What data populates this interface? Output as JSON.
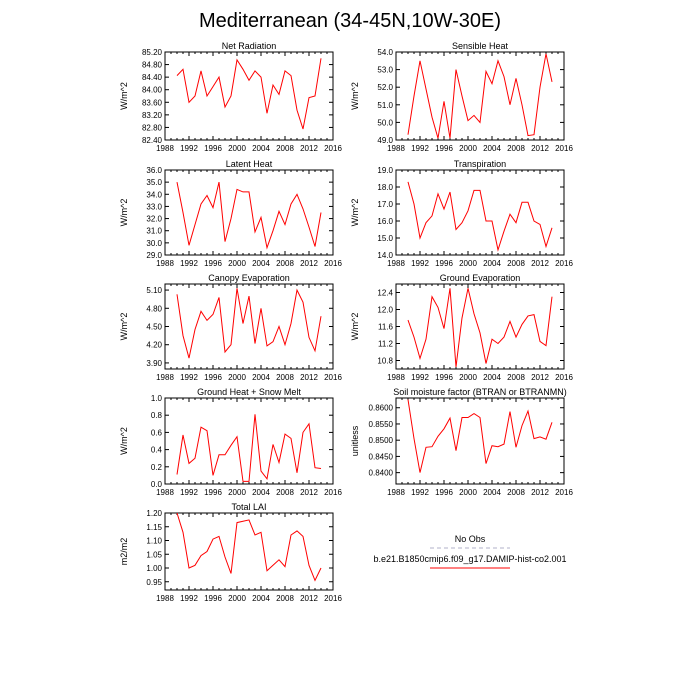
{
  "figure_title": "Mediterranean (34-45N,10W-30E)",
  "x_ticks": [
    "1988",
    "1992",
    "1996",
    "2000",
    "2004",
    "2008",
    "2012",
    "2016"
  ],
  "legend": {
    "obs_label": "No Obs",
    "model_label": "b.e21.B1850cmip6.f09_g17.DAMIP-hist-co2.001",
    "obs_color": "#b0b0c8",
    "model_color": "#ff0000"
  },
  "chart_data": [
    {
      "type": "line",
      "title": "Net Radiation",
      "ylabel": "W/m^2",
      "xlim": [
        1988,
        2016
      ],
      "ylim": [
        82.4,
        85.2
      ],
      "yticks": [
        "82.40",
        "82.80",
        "83.20",
        "83.60",
        "84.00",
        "84.40",
        "84.80",
        "85.20"
      ],
      "x": [
        1990,
        1991,
        1992,
        1993,
        1994,
        1995,
        1996,
        1997,
        1998,
        1999,
        2000,
        2001,
        2002,
        2003,
        2004,
        2005,
        2006,
        2007,
        2008,
        2009,
        2010,
        2011,
        2012,
        2013,
        2014
      ],
      "series": [
        {
          "values": [
            84.45,
            84.65,
            83.6,
            83.8,
            84.6,
            83.8,
            84.1,
            84.4,
            83.45,
            83.8,
            84.95,
            84.65,
            84.3,
            84.6,
            84.4,
            83.25,
            84.15,
            83.85,
            84.6,
            84.45,
            83.35,
            82.75,
            83.75,
            83.8,
            85.0
          ]
        }
      ]
    },
    {
      "type": "line",
      "title": "Sensible Heat",
      "ylabel": "W/m^2",
      "xlim": [
        1988,
        2016
      ],
      "ylim": [
        49.0,
        54.0
      ],
      "yticks": [
        "49.0",
        "50.0",
        "51.0",
        "52.0",
        "53.0",
        "54.0"
      ],
      "x": [
        1990,
        1991,
        1992,
        1993,
        1994,
        1995,
        1996,
        1997,
        1998,
        1999,
        2000,
        2001,
        2002,
        2003,
        2004,
        2005,
        2006,
        2007,
        2008,
        2009,
        2010,
        2011,
        2012,
        2013,
        2014
      ],
      "series": [
        {
          "values": [
            49.3,
            51.5,
            53.5,
            51.9,
            50.3,
            49.1,
            51.2,
            49.1,
            53.0,
            51.5,
            50.1,
            50.4,
            50.0,
            52.9,
            52.2,
            53.5,
            52.6,
            51.0,
            52.5,
            51.0,
            49.25,
            49.3,
            52.0,
            53.9,
            52.3
          ]
        }
      ]
    },
    {
      "type": "line",
      "title": "Latent Heat",
      "ylabel": "W/m^2",
      "xlim": [
        1988,
        2016
      ],
      "ylim": [
        29.0,
        36.0
      ],
      "yticks": [
        "29.0",
        "30.0",
        "31.0",
        "32.0",
        "33.0",
        "34.0",
        "35.0",
        "36.0"
      ],
      "x": [
        1990,
        1991,
        1992,
        1993,
        1994,
        1995,
        1996,
        1997,
        1998,
        1999,
        2000,
        2001,
        2002,
        2003,
        2004,
        2005,
        2006,
        2007,
        2008,
        2009,
        2010,
        2011,
        2012,
        2013,
        2014
      ],
      "series": [
        {
          "values": [
            35.0,
            32.5,
            29.8,
            31.5,
            33.2,
            33.9,
            32.9,
            35.0,
            30.1,
            32.0,
            34.4,
            34.2,
            34.2,
            30.9,
            32.1,
            29.6,
            31.0,
            32.6,
            31.5,
            33.2,
            34.0,
            32.8,
            31.3,
            29.7,
            32.5
          ]
        }
      ]
    },
    {
      "type": "line",
      "title": "Transpiration",
      "ylabel": "W/m^2",
      "xlim": [
        1988,
        2016
      ],
      "ylim": [
        14.0,
        19.0
      ],
      "yticks": [
        "14.0",
        "15.0",
        "16.0",
        "17.0",
        "18.0",
        "19.0"
      ],
      "x": [
        1990,
        1991,
        1992,
        1993,
        1994,
        1995,
        1996,
        1997,
        1998,
        1999,
        2000,
        2001,
        2002,
        2003,
        2004,
        2005,
        2006,
        2007,
        2008,
        2009,
        2010,
        2011,
        2012,
        2013,
        2014
      ],
      "series": [
        {
          "values": [
            18.3,
            17.0,
            15.0,
            15.9,
            16.3,
            17.6,
            16.7,
            17.7,
            15.5,
            15.9,
            16.6,
            17.8,
            17.8,
            16.0,
            16.0,
            14.3,
            15.4,
            16.4,
            15.9,
            17.1,
            17.1,
            16.0,
            15.8,
            14.5,
            15.6
          ]
        }
      ]
    },
    {
      "type": "line",
      "title": "Canopy Evaporation",
      "ylabel": "W/m^2",
      "xlim": [
        1988,
        2016
      ],
      "ylim": [
        3.8,
        5.2
      ],
      "yticks": [
        "3.90",
        "4.20",
        "4.50",
        "4.80",
        "5.10"
      ],
      "x": [
        1990,
        1991,
        1992,
        1993,
        1994,
        1995,
        1996,
        1997,
        1998,
        1999,
        2000,
        2001,
        2002,
        2003,
        2004,
        2005,
        2006,
        2007,
        2008,
        2009,
        2010,
        2011,
        2012,
        2013,
        2014
      ],
      "series": [
        {
          "values": [
            5.03,
            4.35,
            3.98,
            4.45,
            4.75,
            4.6,
            4.7,
            4.98,
            4.08,
            4.2,
            5.13,
            4.55,
            5.0,
            4.22,
            4.8,
            4.18,
            4.25,
            4.5,
            4.2,
            4.55,
            5.1,
            4.9,
            4.32,
            4.1,
            4.67
          ]
        }
      ]
    },
    {
      "type": "line",
      "title": "Ground Evaporation",
      "ylabel": "W/m^2",
      "xlim": [
        1988,
        2016
      ],
      "ylim": [
        10.6,
        12.6
      ],
      "yticks": [
        "10.8",
        "11.2",
        "11.6",
        "12.0",
        "12.4"
      ],
      "x": [
        1990,
        1991,
        1992,
        1993,
        1994,
        1995,
        1996,
        1997,
        1998,
        1999,
        2000,
        2001,
        2002,
        2003,
        2004,
        2005,
        2006,
        2007,
        2008,
        2009,
        2010,
        2011,
        2012,
        2013,
        2014
      ],
      "series": [
        {
          "values": [
            11.75,
            11.35,
            10.85,
            11.3,
            12.3,
            12.05,
            11.55,
            12.5,
            10.65,
            11.8,
            12.5,
            11.9,
            11.45,
            10.73,
            11.3,
            11.2,
            11.35,
            11.72,
            11.35,
            11.65,
            11.85,
            11.88,
            11.25,
            11.15,
            12.3
          ]
        }
      ]
    },
    {
      "type": "line",
      "title": "Ground Heat + Snow Melt",
      "ylabel": "W/m^2",
      "xlim": [
        1988,
        2016
      ],
      "ylim": [
        0.0,
        1.0
      ],
      "yticks": [
        "0.0",
        "0.2",
        "0.4",
        "0.6",
        "0.8",
        "1.0"
      ],
      "x": [
        1990,
        1991,
        1992,
        1993,
        1994,
        1995,
        1996,
        1997,
        1998,
        1999,
        2000,
        2001,
        2002,
        2003,
        2004,
        2005,
        2006,
        2007,
        2008,
        2009,
        2010,
        2011,
        2012,
        2013,
        2014
      ],
      "series": [
        {
          "values": [
            0.11,
            0.57,
            0.24,
            0.3,
            0.66,
            0.62,
            0.1,
            0.34,
            0.34,
            0.45,
            0.55,
            0.03,
            0.03,
            0.81,
            0.15,
            0.06,
            0.46,
            0.25,
            0.58,
            0.53,
            0.13,
            0.6,
            0.7,
            0.19,
            0.18
          ]
        }
      ]
    },
    {
      "type": "line",
      "title": "Soil moisture factor (BTRAN or BTRANMN)",
      "ylabel": "unitless",
      "xlim": [
        1988,
        2016
      ],
      "ylim": [
        0.8365,
        0.863
      ],
      "yticks": [
        "0.8400",
        "0.8450",
        "0.8500",
        "0.8550",
        "0.8600"
      ],
      "x": [
        1990,
        1991,
        1992,
        1993,
        1994,
        1995,
        1996,
        1997,
        1998,
        1999,
        2000,
        2001,
        2002,
        2003,
        2004,
        2005,
        2006,
        2007,
        2008,
        2009,
        2010,
        2011,
        2012,
        2013,
        2014
      ],
      "series": [
        {
          "values": [
            0.8625,
            0.8505,
            0.84,
            0.8478,
            0.848,
            0.8512,
            0.8535,
            0.8568,
            0.8468,
            0.857,
            0.857,
            0.8582,
            0.857,
            0.8428,
            0.8483,
            0.848,
            0.8488,
            0.8588,
            0.8478,
            0.8545,
            0.859,
            0.8505,
            0.851,
            0.8503,
            0.8555
          ]
        }
      ]
    },
    {
      "type": "line",
      "title": "Total LAI",
      "ylabel": "m2/m2",
      "xlim": [
        1988,
        2016
      ],
      "ylim": [
        0.92,
        1.2
      ],
      "yticks": [
        "0.95",
        "1.00",
        "1.05",
        "1.10",
        "1.15",
        "1.20"
      ],
      "x": [
        1990,
        1991,
        1992,
        1993,
        1994,
        1995,
        1996,
        1997,
        1998,
        1999,
        2000,
        2001,
        2002,
        2003,
        2004,
        2005,
        2006,
        2007,
        2008,
        2009,
        2010,
        2011,
        2012,
        2013,
        2014
      ],
      "series": [
        {
          "values": [
            1.2,
            1.13,
            1.0,
            1.01,
            1.045,
            1.06,
            1.105,
            1.115,
            1.04,
            0.98,
            1.165,
            1.17,
            1.175,
            1.12,
            1.13,
            0.99,
            1.01,
            1.03,
            1.005,
            1.12,
            1.135,
            1.115,
            1.01,
            0.955,
            1.0
          ]
        }
      ]
    }
  ]
}
